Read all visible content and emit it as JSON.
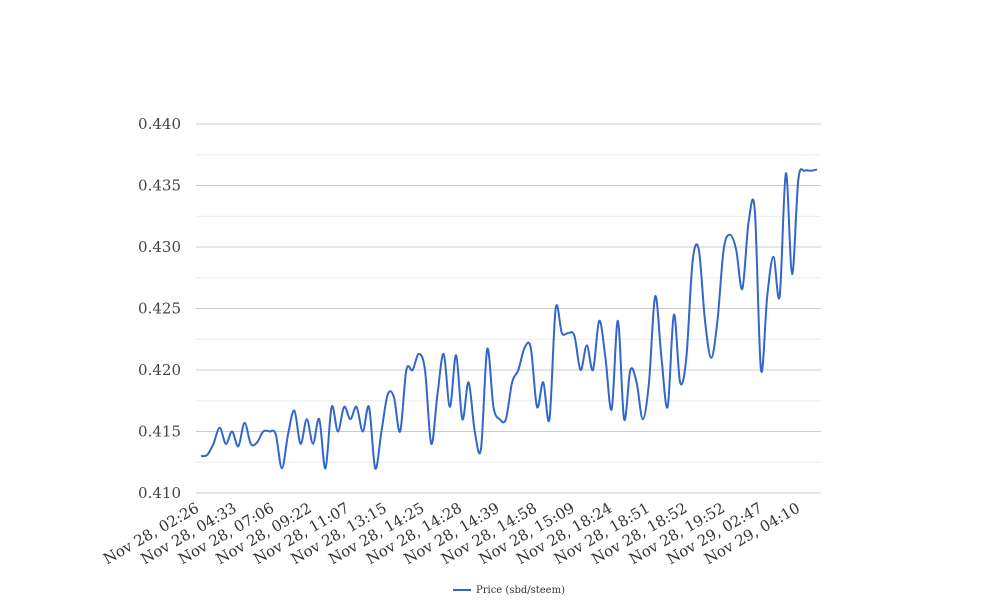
{
  "chart_data": {
    "type": "line",
    "title": "",
    "xlabel": "",
    "ylabel": "",
    "ylim": [
      0.41,
      0.44
    ],
    "y_ticks": [
      "0.410",
      "0.415",
      "0.420",
      "0.425",
      "0.430",
      "0.435",
      "0.440"
    ],
    "x_tick_labels": [
      "Nov 28, 02:26",
      "Nov 28, 04:33",
      "Nov 28, 07:06",
      "Nov 28, 09:22",
      "Nov 28, 11:07",
      "Nov 28, 13:15",
      "Nov 28, 14:25",
      "Nov 28, 14:28",
      "Nov 28, 14:39",
      "Nov 28, 14:58",
      "Nov 28, 15:09",
      "Nov 28, 18:24",
      "Nov 28, 18:51",
      "Nov 28, 18:52",
      "Nov 28, 19:52",
      "Nov 29, 02:47",
      "Nov 29, 04:10"
    ],
    "grid": true,
    "legend": "bottom-center",
    "series": [
      {
        "name": "Price (sbd/steem)",
        "color": "#3366cc",
        "values": [
          0.413,
          0.4131,
          0.414,
          0.4153,
          0.414,
          0.415,
          0.4138,
          0.4157,
          0.414,
          0.4141,
          0.415,
          0.415,
          0.4148,
          0.412,
          0.4148,
          0.4167,
          0.414,
          0.416,
          0.414,
          0.416,
          0.412,
          0.417,
          0.415,
          0.417,
          0.416,
          0.417,
          0.415,
          0.417,
          0.412,
          0.415,
          0.418,
          0.4178,
          0.415,
          0.42,
          0.42,
          0.4213,
          0.42,
          0.414,
          0.418,
          0.4213,
          0.417,
          0.4212,
          0.416,
          0.419,
          0.415,
          0.4136,
          0.4217,
          0.417,
          0.416,
          0.416,
          0.419,
          0.42,
          0.4218,
          0.4218,
          0.417,
          0.419,
          0.416,
          0.425,
          0.423,
          0.423,
          0.4228,
          0.42,
          0.422,
          0.42,
          0.424,
          0.421,
          0.4168,
          0.424,
          0.416,
          0.42,
          0.419,
          0.416,
          0.419,
          0.426,
          0.421,
          0.417,
          0.4245,
          0.419,
          0.421,
          0.4288,
          0.4298,
          0.424,
          0.421,
          0.424,
          0.4298,
          0.431,
          0.4298,
          0.4266,
          0.432,
          0.433,
          0.42,
          0.426,
          0.4292,
          0.426,
          0.436,
          0.4278,
          0.4355,
          0.4362,
          0.4362,
          0.4363
        ]
      }
    ]
  }
}
